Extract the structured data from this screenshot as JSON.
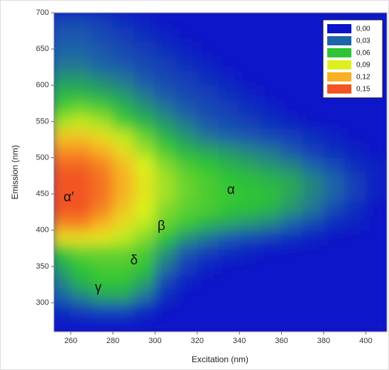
{
  "chart_data": {
    "type": "contour",
    "x_label": "Excitation (nm)",
    "y_label": "Emission (nm)",
    "xlim": [
      252,
      410
    ],
    "ylim": [
      260,
      700
    ],
    "xticks": [
      260,
      280,
      300,
      320,
      340,
      360,
      380,
      400
    ],
    "yticks": [
      300,
      350,
      400,
      450,
      500,
      550,
      600,
      650,
      700
    ],
    "levels": [
      {
        "value": 0,
        "label": "0,00"
      },
      {
        "value": 0.03,
        "label": "0,03"
      },
      {
        "value": 0.06,
        "label": "0,06"
      },
      {
        "value": 0.09,
        "label": "0,09"
      },
      {
        "value": 0.12,
        "label": "0,12"
      },
      {
        "value": 0.15,
        "label": "0,15"
      }
    ],
    "colors": [
      "#0a14c8",
      "#1e64a8",
      "#2ec436",
      "#dcf01e",
      "#f8b024",
      "#f25522"
    ],
    "legend": "upper right",
    "x": [
      255,
      265,
      275,
      285,
      295,
      305,
      315,
      325,
      335,
      345,
      355,
      365,
      375,
      385,
      395,
      405
    ],
    "y": [
      270,
      290,
      310,
      330,
      350,
      370,
      390,
      410,
      430,
      450,
      470,
      490,
      510,
      530,
      550,
      570,
      590,
      610,
      630,
      650,
      670,
      690
    ],
    "z": [
      [
        0,
        0,
        0,
        0,
        0,
        0,
        0,
        0,
        0,
        0,
        0,
        0,
        0,
        0,
        0,
        0
      ],
      [
        0.01,
        0.015,
        0.02,
        0.02,
        0.01,
        0,
        0,
        0,
        0,
        0,
        0,
        0,
        0,
        0,
        0,
        0
      ],
      [
        0.03,
        0.04,
        0.05,
        0.05,
        0.035,
        0.01,
        0,
        0,
        0,
        0,
        0,
        0,
        0,
        0,
        0,
        0
      ],
      [
        0.04,
        0.055,
        0.06,
        0.06,
        0.05,
        0.02,
        0.005,
        0,
        0,
        0,
        0,
        0,
        0,
        0,
        0,
        0
      ],
      [
        0.05,
        0.06,
        0.065,
        0.065,
        0.06,
        0.035,
        0.015,
        0.005,
        0,
        0,
        0,
        0,
        0,
        0,
        0,
        0
      ],
      [
        0.06,
        0.07,
        0.07,
        0.07,
        0.065,
        0.045,
        0.025,
        0.015,
        0.01,
        0.005,
        0,
        0,
        0,
        0,
        0,
        0
      ],
      [
        0.1,
        0.1,
        0.095,
        0.085,
        0.075,
        0.06,
        0.045,
        0.035,
        0.025,
        0.02,
        0.015,
        0.01,
        0.005,
        0,
        0,
        0
      ],
      [
        0.135,
        0.135,
        0.12,
        0.1,
        0.085,
        0.07,
        0.062,
        0.055,
        0.05,
        0.045,
        0.04,
        0.03,
        0.02,
        0.01,
        0.005,
        0
      ],
      [
        0.15,
        0.15,
        0.135,
        0.11,
        0.09,
        0.075,
        0.068,
        0.065,
        0.06,
        0.058,
        0.055,
        0.045,
        0.035,
        0.02,
        0.01,
        0
      ],
      [
        0.155,
        0.155,
        0.14,
        0.12,
        0.095,
        0.08,
        0.07,
        0.065,
        0.062,
        0.06,
        0.058,
        0.05,
        0.04,
        0.03,
        0.015,
        0.005
      ],
      [
        0.155,
        0.155,
        0.14,
        0.12,
        0.095,
        0.08,
        0.07,
        0.065,
        0.06,
        0.058,
        0.055,
        0.05,
        0.04,
        0.03,
        0.015,
        0.005
      ],
      [
        0.145,
        0.145,
        0.135,
        0.115,
        0.09,
        0.075,
        0.065,
        0.06,
        0.055,
        0.05,
        0.045,
        0.04,
        0.03,
        0.02,
        0.01,
        0.005
      ],
      [
        0.13,
        0.13,
        0.12,
        0.1,
        0.08,
        0.065,
        0.055,
        0.05,
        0.045,
        0.04,
        0.035,
        0.025,
        0.015,
        0.01,
        0.005,
        0
      ],
      [
        0.11,
        0.11,
        0.1,
        0.085,
        0.07,
        0.055,
        0.045,
        0.035,
        0.03,
        0.025,
        0.02,
        0.015,
        0.01,
        0.005,
        0,
        0
      ],
      [
        0.08,
        0.085,
        0.08,
        0.065,
        0.055,
        0.045,
        0.035,
        0.025,
        0.02,
        0.015,
        0.01,
        0.005,
        0,
        0,
        0,
        0
      ],
      [
        0.065,
        0.07,
        0.065,
        0.055,
        0.045,
        0.035,
        0.025,
        0.02,
        0.015,
        0.01,
        0.005,
        0,
        0,
        0,
        0,
        0
      ],
      [
        0.055,
        0.055,
        0.05,
        0.045,
        0.035,
        0.025,
        0.02,
        0.015,
        0.01,
        0.005,
        0,
        0,
        0,
        0,
        0,
        0
      ],
      [
        0.045,
        0.045,
        0.04,
        0.035,
        0.025,
        0.02,
        0.015,
        0.01,
        0.005,
        0,
        0,
        0,
        0,
        0,
        0,
        0
      ],
      [
        0.035,
        0.035,
        0.03,
        0.025,
        0.02,
        0.015,
        0.01,
        0.005,
        0,
        0,
        0,
        0,
        0,
        0,
        0,
        0
      ],
      [
        0.03,
        0.03,
        0.025,
        0.02,
        0.015,
        0.01,
        0.005,
        0,
        0,
        0,
        0,
        0,
        0,
        0,
        0,
        0
      ],
      [
        0.025,
        0.025,
        0.02,
        0.015,
        0.01,
        0.005,
        0,
        0,
        0,
        0,
        0,
        0,
        0,
        0,
        0,
        0
      ],
      [
        0.02,
        0.02,
        0.015,
        0.01,
        0.005,
        0,
        0,
        0,
        0,
        0,
        0,
        0,
        0,
        0,
        0,
        0
      ]
    ],
    "annotations": [
      {
        "text": "α′",
        "x": 259,
        "y": 445
      },
      {
        "text": "α",
        "x": 336,
        "y": 455
      },
      {
        "text": "β",
        "x": 303,
        "y": 405
      },
      {
        "text": "δ",
        "x": 290,
        "y": 358
      },
      {
        "text": "γ",
        "x": 273,
        "y": 320
      }
    ]
  }
}
